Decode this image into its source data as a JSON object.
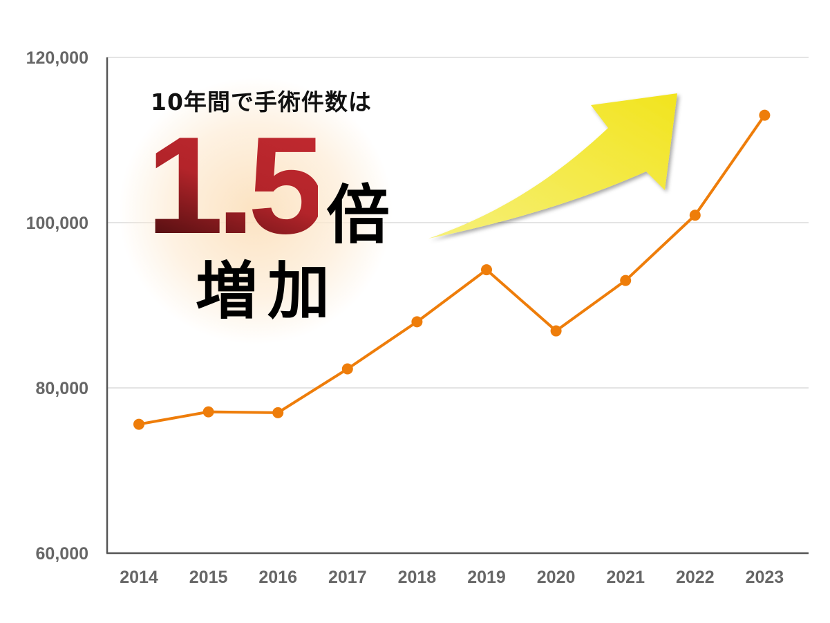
{
  "chart_data": {
    "type": "line",
    "title": "",
    "xlabel": "",
    "ylabel": "",
    "categories": [
      "2014",
      "2015",
      "2016",
      "2017",
      "2018",
      "2019",
      "2020",
      "2021",
      "2022",
      "2023"
    ],
    "values": [
      75600,
      77100,
      77000,
      82300,
      88000,
      94300,
      86900,
      93000,
      100900,
      113000
    ],
    "ylim": [
      60000,
      120000
    ],
    "yticks": [
      60000,
      80000,
      100000,
      120000
    ],
    "ytick_labels": [
      "60,000",
      "80,000",
      "100,000",
      "120,000"
    ],
    "grid": true,
    "line_color": "#ee7d0a",
    "annotation": {
      "subtitle": "10年間で手術件数は",
      "big_number": "1.5",
      "unit": "倍",
      "suffix": "増加",
      "arrow_color": "#f3e82a"
    }
  }
}
